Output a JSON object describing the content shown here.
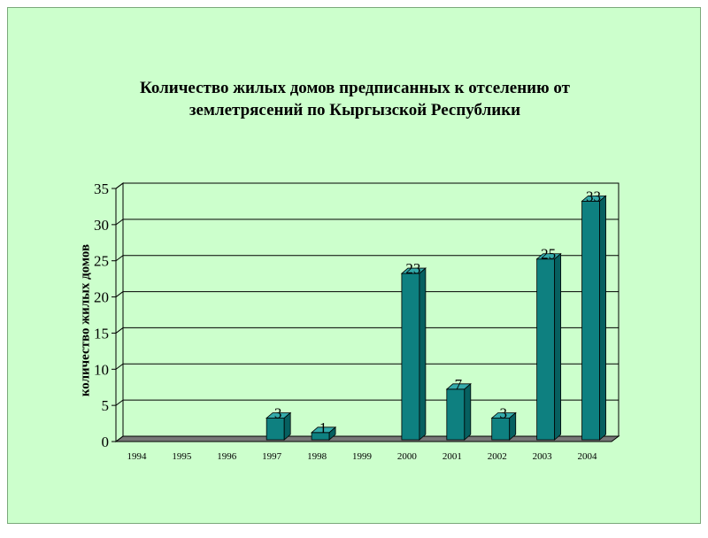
{
  "slide": {
    "background": "#ccffcc"
  },
  "chart_data": {
    "type": "bar",
    "title_line1": "Количество жилых домов предписанных к отселению от",
    "title_line2": "землетрясений по Кыргызской Республики",
    "ylabel": "количество жилых домов",
    "xlabel": "",
    "categories": [
      "1994",
      "1995",
      "1996",
      "1997",
      "1998",
      "1999",
      "2000",
      "2001",
      "2002",
      "2003",
      "2004"
    ],
    "values": [
      0,
      0,
      0,
      3,
      1,
      0,
      23,
      7,
      3,
      25,
      33
    ],
    "data_labels": [
      "",
      "",
      "",
      "3",
      "1",
      "",
      "23",
      "7",
      "3",
      "25",
      "33"
    ],
    "ylim": [
      0,
      35
    ],
    "yticks": [
      0,
      5,
      10,
      15,
      20,
      25,
      30,
      35
    ],
    "grid": true,
    "style": "3d-column",
    "colors": {
      "bar_front": "#0e8080",
      "bar_top": "#33aaaa",
      "bar_side": "#066060",
      "grid": "#000000",
      "floor": "#777777"
    }
  }
}
